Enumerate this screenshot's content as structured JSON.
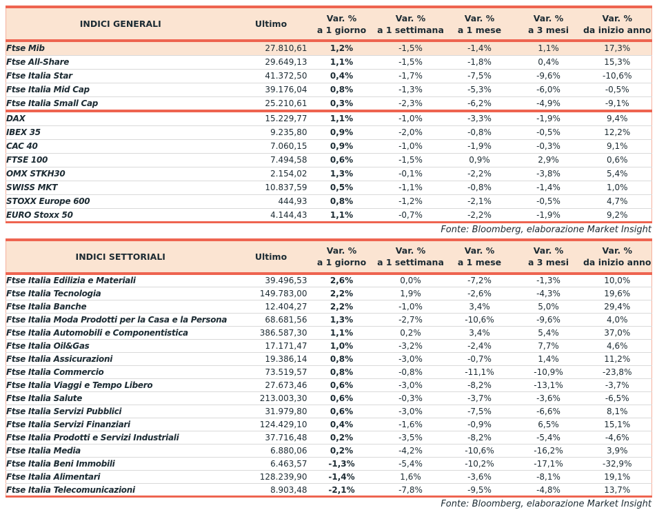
{
  "colors": {
    "accent": "#ee6450",
    "header_bg": "#fbe4d2",
    "highlight_bg": "#fbe4d2",
    "border_light": "#f5b09d",
    "row_divider": "#d9d9d9",
    "text": "#1c2b33"
  },
  "source_note": "Fonte: Bloomberg, elaborazione Market Insight",
  "columns": {
    "value_header": "Ultimo",
    "var_headers": [
      {
        "l1": "Var. %",
        "l2": "a 1 giorno"
      },
      {
        "l1": "Var. %",
        "l2": "a 1 settimana"
      },
      {
        "l1": "Var. %",
        "l2": "a 1 mese"
      },
      {
        "l1": "Var. %",
        "l2": "a 3 mesi"
      },
      {
        "l1": "Var. %",
        "l2": "da inizio anno"
      }
    ]
  },
  "tables": [
    {
      "title": "INDICI GENERALI",
      "group_break_after": 4,
      "rows": [
        {
          "name": "Ftse Mib",
          "last": "27.810,61",
          "pct": [
            "1,2%",
            "-1,5%",
            "-1,4%",
            "1,1%",
            "17,3%"
          ],
          "highlight": true
        },
        {
          "name": "Ftse All-Share",
          "last": "29.649,13",
          "pct": [
            "1,1%",
            "-1,5%",
            "-1,8%",
            "0,4%",
            "15,3%"
          ]
        },
        {
          "name": "Ftse Italia Star",
          "last": "41.372,50",
          "pct": [
            "0,4%",
            "-1,7%",
            "-7,5%",
            "-9,6%",
            "-10,6%"
          ]
        },
        {
          "name": "Ftse Italia Mid Cap",
          "last": "39.176,04",
          "pct": [
            "0,8%",
            "-1,3%",
            "-5,3%",
            "-6,0%",
            "-0,5%"
          ]
        },
        {
          "name": "Ftse Italia Small Cap",
          "last": "25.210,61",
          "pct": [
            "0,3%",
            "-2,3%",
            "-6,2%",
            "-4,9%",
            "-9,1%"
          ]
        },
        {
          "name": "DAX",
          "last": "15.229,77",
          "pct": [
            "1,1%",
            "-1,0%",
            "-3,3%",
            "-1,9%",
            "9,4%"
          ]
        },
        {
          "name": "IBEX 35",
          "last": "9.235,80",
          "pct": [
            "0,9%",
            "-2,0%",
            "-0,8%",
            "-0,5%",
            "12,2%"
          ]
        },
        {
          "name": "CAC 40",
          "last": "7.060,15",
          "pct": [
            "0,9%",
            "-1,0%",
            "-1,9%",
            "-0,3%",
            "9,1%"
          ]
        },
        {
          "name": "FTSE 100",
          "last": "7.494,58",
          "pct": [
            "0,6%",
            "-1,5%",
            "0,9%",
            "2,9%",
            "0,6%"
          ]
        },
        {
          "name": "OMX STKH30",
          "last": "2.154,02",
          "pct": [
            "1,3%",
            "-0,1%",
            "-2,2%",
            "-3,8%",
            "5,4%"
          ]
        },
        {
          "name": "SWISS MKT",
          "last": "10.837,59",
          "pct": [
            "0,5%",
            "-1,1%",
            "-0,8%",
            "-1,4%",
            "1,0%"
          ]
        },
        {
          "name": "STOXX Europe 600",
          "last": "444,93",
          "pct": [
            "0,8%",
            "-1,2%",
            "-2,1%",
            "-0,5%",
            "4,7%"
          ]
        },
        {
          "name": "EURO Stoxx 50",
          "last": "4.144,43",
          "pct": [
            "1,1%",
            "-0,7%",
            "-2,2%",
            "-1,9%",
            "9,2%"
          ]
        }
      ]
    },
    {
      "title": "INDICI SETTORIALI",
      "rows": [
        {
          "name": "Ftse Italia Edilizia e Materiali",
          "last": "39.496,53",
          "pct": [
            "2,6%",
            "0,0%",
            "-7,2%",
            "-1,3%",
            "10,0%"
          ]
        },
        {
          "name": "Ftse Italia Tecnologia",
          "last": "149.783,00",
          "pct": [
            "2,2%",
            "1,9%",
            "-2,6%",
            "-4,3%",
            "19,6%"
          ]
        },
        {
          "name": "Ftse Italia Banche",
          "last": "12.404,27",
          "pct": [
            "2,2%",
            "-1,0%",
            "3,4%",
            "5,0%",
            "29,4%"
          ]
        },
        {
          "name": "Ftse Italia Moda Prodotti per la Casa e la Persona",
          "last": "68.681,56",
          "pct": [
            "1,3%",
            "-2,7%",
            "-10,6%",
            "-9,6%",
            "4,0%"
          ]
        },
        {
          "name": "Ftse Italia Automobili e Componentistica",
          "last": "386.587,30",
          "pct": [
            "1,1%",
            "0,2%",
            "3,4%",
            "5,4%",
            "37,0%"
          ]
        },
        {
          "name": "Ftse Italia Oil&Gas",
          "last": "17.171,47",
          "pct": [
            "1,0%",
            "-3,2%",
            "-2,4%",
            "7,7%",
            "4,6%"
          ]
        },
        {
          "name": "Ftse Italia Assicurazioni",
          "last": "19.386,14",
          "pct": [
            "0,8%",
            "-3,0%",
            "-0,7%",
            "1,4%",
            "11,2%"
          ]
        },
        {
          "name": "Ftse Italia Commercio",
          "last": "73.519,57",
          "pct": [
            "0,8%",
            "-0,8%",
            "-11,1%",
            "-10,9%",
            "-23,8%"
          ]
        },
        {
          "name": "Ftse Italia Viaggi e Tempo Libero",
          "last": "27.673,46",
          "pct": [
            "0,6%",
            "-3,0%",
            "-8,2%",
            "-13,1%",
            "-3,7%"
          ]
        },
        {
          "name": "Ftse Italia Salute",
          "last": "213.003,30",
          "pct": [
            "0,6%",
            "-0,3%",
            "-3,7%",
            "-3,6%",
            "-6,5%"
          ]
        },
        {
          "name": "Ftse Italia Servizi Pubblici",
          "last": "31.979,80",
          "pct": [
            "0,6%",
            "-3,0%",
            "-7,5%",
            "-6,6%",
            "8,1%"
          ]
        },
        {
          "name": "Ftse Italia Servizi Finanziari",
          "last": "124.429,10",
          "pct": [
            "0,4%",
            "-1,6%",
            "-0,9%",
            "6,5%",
            "15,1%"
          ]
        },
        {
          "name": "Ftse Italia Prodotti e Servizi Industriali",
          "last": "37.716,48",
          "pct": [
            "0,2%",
            "-3,5%",
            "-8,2%",
            "-5,4%",
            "-4,6%"
          ]
        },
        {
          "name": "Ftse Italia Media",
          "last": "6.880,06",
          "pct": [
            "0,2%",
            "-4,2%",
            "-10,6%",
            "-16,2%",
            "3,9%"
          ]
        },
        {
          "name": "Ftse Italia Beni Immobili",
          "last": "6.463,57",
          "pct": [
            "-1,3%",
            "-5,4%",
            "-10,2%",
            "-17,1%",
            "-32,9%"
          ]
        },
        {
          "name": "Ftse Italia Alimentari",
          "last": "128.239,90",
          "pct": [
            "-1,4%",
            "1,6%",
            "-3,6%",
            "-8,1%",
            "19,1%"
          ]
        },
        {
          "name": "Ftse Italia Telecomunicazioni",
          "last": "8.903,48",
          "pct": [
            "-2,1%",
            "-7,8%",
            "-9,5%",
            "-4,8%",
            "13,7%"
          ]
        }
      ]
    }
  ]
}
